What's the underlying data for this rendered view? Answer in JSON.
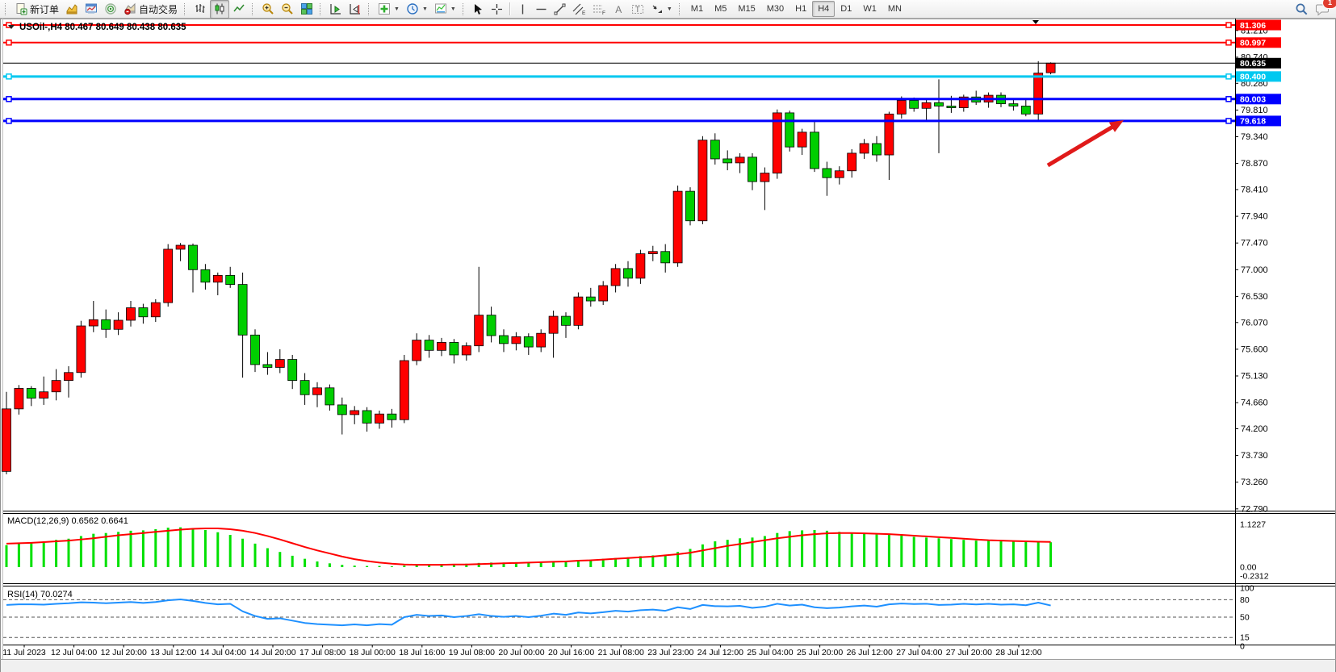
{
  "toolbar": {
    "new_order_label": "新订单",
    "autotrading_label": "自动交易",
    "timeframes": [
      "M1",
      "M5",
      "M15",
      "M30",
      "H1",
      "H4",
      "D1",
      "W1",
      "MN"
    ],
    "active_timeframe": "H4",
    "chat_badge": "1"
  },
  "chart": {
    "title_symbol": "USOil-,H4",
    "title_ohlc": "80.467 80.649 80.438 80.635"
  },
  "chart_data": {
    "type": "candlestick",
    "symbol": "USOil-",
    "timeframe": "H4",
    "current_bar": {
      "open": 80.467,
      "high": 80.649,
      "low": 80.438,
      "close": 80.635
    },
    "bull_color": "#FF0000",
    "bear_color": "#00CE00",
    "price_axis_range": [
      72.79,
      81.306
    ],
    "candles": [
      [
        73.45,
        74.85,
        73.4,
        74.55
      ],
      [
        74.55,
        74.97,
        74.45,
        74.91
      ],
      [
        74.91,
        74.95,
        74.6,
        74.74
      ],
      [
        74.74,
        75.12,
        74.62,
        74.85
      ],
      [
        74.85,
        75.25,
        74.7,
        75.05
      ],
      [
        75.05,
        75.3,
        74.75,
        75.19
      ],
      [
        75.19,
        76.1,
        75.1,
        76.01
      ],
      [
        76.01,
        76.45,
        75.9,
        76.12
      ],
      [
        76.12,
        76.3,
        75.8,
        75.95
      ],
      [
        75.95,
        76.25,
        75.85,
        76.11
      ],
      [
        76.11,
        76.45,
        76.0,
        76.33
      ],
      [
        76.33,
        76.4,
        76.05,
        76.17
      ],
      [
        76.17,
        76.48,
        76.08,
        76.42
      ],
      [
        76.42,
        77.45,
        76.35,
        77.36
      ],
      [
        77.36,
        77.47,
        77.15,
        77.43
      ],
      [
        77.43,
        77.46,
        76.6,
        77.0
      ],
      [
        77.0,
        77.1,
        76.65,
        76.78
      ],
      [
        76.78,
        76.95,
        76.55,
        76.9
      ],
      [
        76.9,
        77.05,
        76.68,
        76.74
      ],
      [
        76.74,
        76.95,
        75.1,
        75.85
      ],
      [
        75.85,
        75.95,
        75.2,
        75.33
      ],
      [
        75.33,
        75.55,
        75.15,
        75.28
      ],
      [
        75.28,
        75.6,
        75.18,
        75.42
      ],
      [
        75.42,
        75.5,
        74.9,
        75.05
      ],
      [
        75.05,
        75.18,
        74.62,
        74.8
      ],
      [
        74.8,
        75.02,
        74.58,
        74.92
      ],
      [
        74.92,
        74.98,
        74.52,
        74.62
      ],
      [
        74.62,
        74.75,
        74.1,
        74.45
      ],
      [
        74.45,
        74.6,
        74.28,
        74.52
      ],
      [
        74.52,
        74.58,
        74.15,
        74.3
      ],
      [
        74.3,
        74.52,
        74.2,
        74.46
      ],
      [
        74.46,
        74.55,
        74.22,
        74.36
      ],
      [
        74.36,
        75.5,
        74.3,
        75.4
      ],
      [
        75.4,
        75.88,
        75.32,
        75.76
      ],
      [
        75.76,
        75.85,
        75.45,
        75.58
      ],
      [
        75.58,
        75.8,
        75.48,
        75.72
      ],
      [
        75.72,
        75.78,
        75.35,
        75.5
      ],
      [
        75.5,
        75.72,
        75.4,
        75.66
      ],
      [
        75.66,
        77.05,
        75.55,
        76.2
      ],
      [
        76.2,
        76.35,
        75.72,
        75.84
      ],
      [
        75.84,
        75.95,
        75.55,
        75.7
      ],
      [
        75.7,
        75.9,
        75.58,
        75.82
      ],
      [
        75.82,
        75.88,
        75.5,
        75.64
      ],
      [
        75.64,
        75.95,
        75.55,
        75.88
      ],
      [
        75.88,
        76.28,
        75.45,
        76.18
      ],
      [
        76.18,
        76.25,
        75.8,
        76.02
      ],
      [
        76.02,
        76.6,
        75.95,
        76.52
      ],
      [
        76.52,
        76.68,
        76.35,
        76.45
      ],
      [
        76.45,
        76.8,
        76.38,
        76.72
      ],
      [
        76.72,
        77.1,
        76.6,
        77.02
      ],
      [
        77.02,
        77.15,
        76.7,
        76.85
      ],
      [
        76.85,
        77.35,
        76.75,
        77.28
      ],
      [
        77.28,
        77.42,
        77.15,
        77.32
      ],
      [
        77.32,
        77.45,
        76.95,
        77.12
      ],
      [
        77.12,
        78.48,
        77.05,
        78.38
      ],
      [
        78.38,
        78.45,
        77.78,
        77.86
      ],
      [
        77.86,
        79.35,
        77.8,
        79.28
      ],
      [
        79.28,
        79.4,
        78.85,
        78.95
      ],
      [
        78.95,
        79.1,
        78.75,
        78.88
      ],
      [
        78.88,
        79.05,
        78.7,
        78.98
      ],
      [
        78.98,
        79.05,
        78.4,
        78.55
      ],
      [
        78.55,
        78.8,
        78.05,
        78.7
      ],
      [
        78.7,
        79.82,
        78.6,
        79.76
      ],
      [
        79.76,
        79.8,
        79.08,
        79.16
      ],
      [
        79.16,
        79.48,
        79.02,
        79.42
      ],
      [
        79.42,
        79.6,
        78.72,
        78.78
      ],
      [
        78.78,
        78.9,
        78.3,
        78.62
      ],
      [
        78.62,
        78.82,
        78.5,
        78.74
      ],
      [
        78.74,
        79.12,
        78.62,
        79.05
      ],
      [
        79.05,
        79.3,
        78.95,
        79.22
      ],
      [
        79.22,
        79.35,
        78.9,
        79.02
      ],
      [
        79.02,
        79.78,
        78.58,
        79.74
      ],
      [
        79.74,
        80.05,
        79.66,
        79.98
      ],
      [
        79.98,
        80.03,
        79.78,
        79.84
      ],
      [
        79.84,
        80.0,
        79.62,
        79.94
      ],
      [
        79.94,
        80.35,
        79.05,
        79.88
      ],
      [
        79.88,
        80.06,
        79.76,
        79.85
      ],
      [
        79.85,
        80.08,
        79.78,
        80.04
      ],
      [
        80.04,
        80.15,
        79.9,
        79.95
      ],
      [
        79.95,
        80.12,
        79.85,
        80.07
      ],
      [
        80.07,
        80.12,
        79.86,
        79.92
      ],
      [
        79.92,
        80.02,
        79.8,
        79.88
      ],
      [
        79.88,
        80.0,
        79.7,
        79.74
      ],
      [
        79.74,
        80.67,
        79.62,
        80.46
      ],
      [
        80.467,
        80.649,
        80.438,
        80.635
      ]
    ],
    "time_labels": [
      "11 Jul 2023",
      "12 Jul 04:00",
      "12 Jul 20:00",
      "13 Jul 12:00",
      "14 Jul 04:00",
      "14 Jul 20:00",
      "17 Jul 08:00",
      "18 Jul 00:00",
      "18 Jul 16:00",
      "19 Jul 08:00",
      "20 Jul 00:00",
      "20 Jul 16:00",
      "21 Jul 08:00",
      "23 Jul 23:00",
      "24 Jul 12:00",
      "25 Jul 04:00",
      "25 Jul 20:00",
      "26 Jul 12:00",
      "27 Jul 04:00",
      "27 Jul 20:00",
      "28 Jul 12:00"
    ],
    "price_ticks": [
      "81.210",
      "80.740",
      "80.280",
      "79.810",
      "79.340",
      "78.870",
      "78.410",
      "77.940",
      "77.470",
      "77.000",
      "76.530",
      "76.070",
      "75.600",
      "75.130",
      "74.660",
      "74.200",
      "73.730",
      "73.260",
      "72.790"
    ],
    "levels": [
      {
        "price": 81.306,
        "label": "81.306",
        "color": "#FF0000",
        "width": 2,
        "handles": true
      },
      {
        "price": 80.997,
        "label": "80.997",
        "color": "#FF0000",
        "width": 2,
        "handles": true
      },
      {
        "price": 80.635,
        "label": "80.635",
        "color": "#000000",
        "width": 1,
        "handles": false,
        "current": true
      },
      {
        "price": 80.4,
        "label": "80.400",
        "color": "#00C8F0",
        "width": 3,
        "handles": true
      },
      {
        "price": 80.003,
        "label": "80.003",
        "color": "#0000FF",
        "width": 3,
        "handles": true
      },
      {
        "price": 79.618,
        "label": "79.618",
        "color": "#0000FF",
        "width": 3,
        "handles": true
      }
    ],
    "macd": {
      "label": "MACD(12,26,9) 0.6562 0.6641",
      "current_macd": 0.6562,
      "current_signal": 0.6641,
      "axis": [
        "1.1227",
        "0.00",
        "-0.2312"
      ],
      "hist_color": "#00E000",
      "signal_color": "#FF0000",
      "histogram": [
        0.58,
        0.62,
        0.66,
        0.68,
        0.72,
        0.75,
        0.82,
        0.88,
        0.9,
        0.93,
        0.96,
        0.97,
        1.0,
        1.04,
        1.05,
        1.03,
        0.98,
        0.92,
        0.85,
        0.75,
        0.62,
        0.5,
        0.4,
        0.3,
        0.22,
        0.15,
        0.1,
        0.06,
        0.04,
        0.03,
        0.03,
        0.02,
        0.04,
        0.06,
        0.07,
        0.08,
        0.08,
        0.09,
        0.11,
        0.12,
        0.12,
        0.13,
        0.13,
        0.14,
        0.16,
        0.17,
        0.19,
        0.2,
        0.22,
        0.24,
        0.26,
        0.29,
        0.31,
        0.33,
        0.4,
        0.48,
        0.6,
        0.68,
        0.72,
        0.76,
        0.78,
        0.82,
        0.9,
        0.95,
        0.97,
        0.98,
        0.96,
        0.93,
        0.9,
        0.88,
        0.86,
        0.85,
        0.83,
        0.8,
        0.78,
        0.76,
        0.74,
        0.72,
        0.7,
        0.69,
        0.68,
        0.67,
        0.66,
        0.66,
        0.656
      ],
      "signal": [
        0.62,
        0.63,
        0.64,
        0.66,
        0.68,
        0.7,
        0.73,
        0.76,
        0.8,
        0.84,
        0.87,
        0.9,
        0.93,
        0.96,
        0.99,
        1.01,
        1.02,
        1.02,
        1.0,
        0.96,
        0.9,
        0.82,
        0.73,
        0.63,
        0.53,
        0.44,
        0.36,
        0.28,
        0.21,
        0.16,
        0.12,
        0.09,
        0.07,
        0.06,
        0.06,
        0.06,
        0.07,
        0.07,
        0.08,
        0.09,
        0.1,
        0.11,
        0.12,
        0.13,
        0.14,
        0.15,
        0.17,
        0.18,
        0.2,
        0.22,
        0.24,
        0.26,
        0.28,
        0.31,
        0.34,
        0.38,
        0.44,
        0.5,
        0.56,
        0.61,
        0.66,
        0.71,
        0.76,
        0.8,
        0.84,
        0.87,
        0.89,
        0.9,
        0.9,
        0.89,
        0.88,
        0.87,
        0.85,
        0.83,
        0.81,
        0.79,
        0.77,
        0.75,
        0.73,
        0.71,
        0.7,
        0.69,
        0.68,
        0.67,
        0.664
      ]
    },
    "rsi": {
      "label": "RSI(14) 70.0274",
      "period": 14,
      "current": 70.0274,
      "color": "#1E90FF",
      "levels": [
        80,
        50,
        15
      ],
      "axis": [
        "100",
        "80",
        "50",
        "15",
        "0"
      ],
      "values": [
        71,
        72,
        72,
        71.5,
        73,
        74,
        75.5,
        75,
        74,
        75,
        76,
        74.5,
        76,
        79,
        80.5,
        78,
        74.5,
        72,
        73,
        60,
        52,
        47,
        48,
        44,
        40,
        38,
        37,
        36,
        37.5,
        36,
        38,
        37,
        50,
        54,
        52,
        53,
        50,
        52,
        55,
        52,
        50.5,
        52,
        50,
        52.5,
        56,
        54,
        58,
        56.5,
        58.5,
        61,
        59.5,
        62,
        63,
        61,
        67,
        64,
        71,
        69,
        68.5,
        69.5,
        66,
        68,
        73,
        70,
        71.5,
        67,
        65.5,
        66.5,
        68.5,
        70,
        68,
        72,
        73.5,
        72.5,
        73,
        71,
        71.5,
        73,
        71.8,
        73,
        71.5,
        72,
        70.5,
        75,
        70.03
      ]
    },
    "annotation_arrow": {
      "from": [
        1298,
        205
      ],
      "to": [
        1392,
        149
      ],
      "color": "#E01A1A"
    }
  }
}
